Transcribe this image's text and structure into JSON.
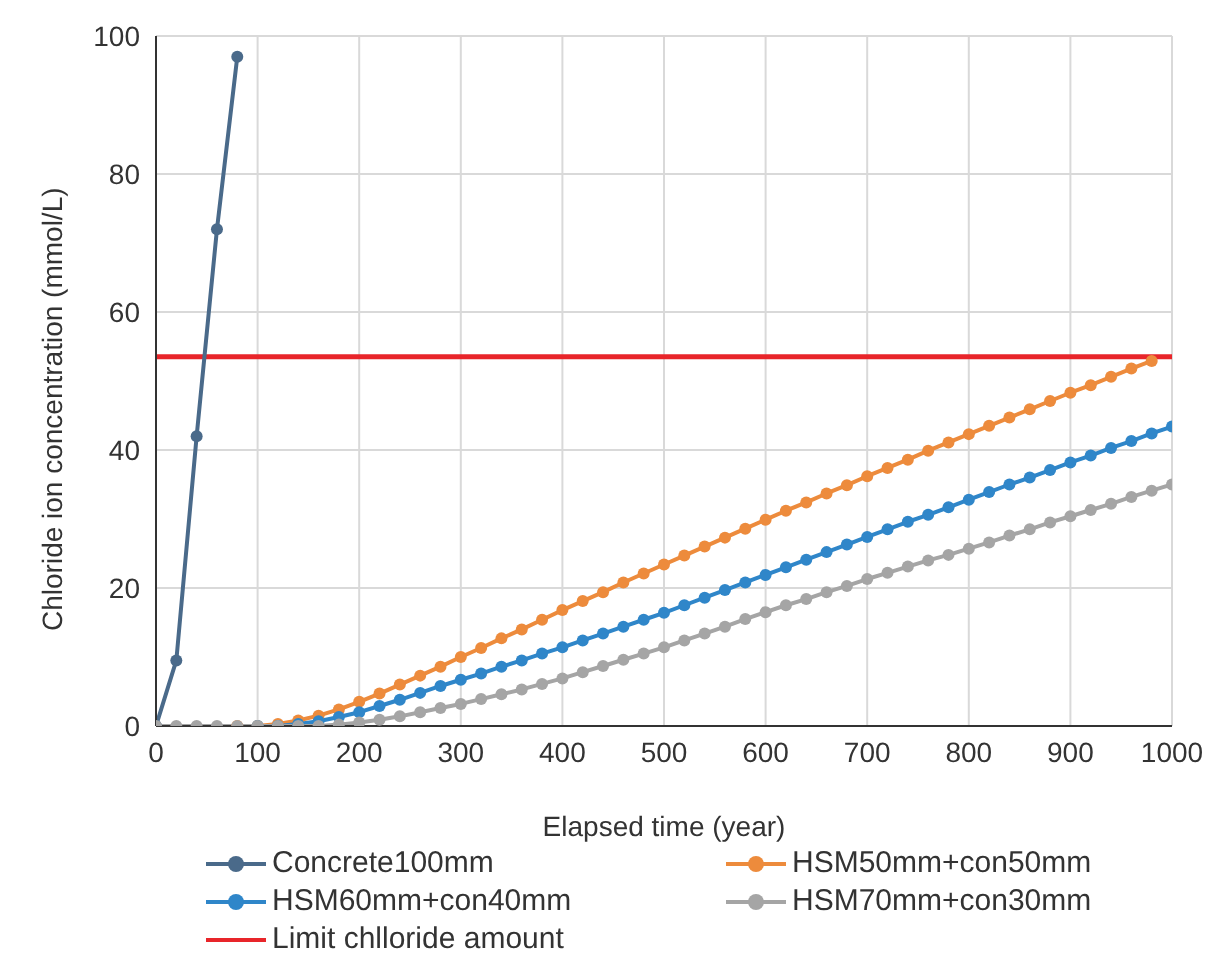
{
  "chart_data": {
    "type": "line",
    "xlabel": "Elapsed time (year)",
    "ylabel": "Chloride ion concentration (mmol/L)",
    "xlim": [
      0,
      1000
    ],
    "xticks": [
      0,
      100,
      200,
      300,
      400,
      500,
      600,
      700,
      800,
      900,
      1000
    ],
    "ylim": [
      0,
      100
    ],
    "yticks": [
      0,
      20,
      40,
      60,
      80,
      100
    ],
    "grid": true,
    "legend": "bottom",
    "marker": "circle",
    "series": [
      {
        "name": "Concrete100mm",
        "color": "#4a6a8a",
        "x": [
          0,
          20,
          40,
          60,
          80
        ],
        "values": [
          0,
          9.5,
          42,
          72,
          97
        ]
      },
      {
        "name": "HSM50mm+con50mm",
        "color": "#ed8b3c",
        "x": [
          80,
          100,
          120,
          140,
          160,
          180,
          200,
          220,
          240,
          260,
          280,
          300,
          320,
          340,
          360,
          380,
          400,
          420,
          440,
          460,
          480,
          500,
          520,
          540,
          560,
          580,
          600,
          620,
          640,
          660,
          680,
          700,
          720,
          740,
          760,
          780,
          800,
          820,
          840,
          860,
          880,
          900,
          920,
          940,
          960,
          980
        ],
        "values": [
          0,
          0,
          0.3,
          0.8,
          1.5,
          2.4,
          3.5,
          4.7,
          6.0,
          7.3,
          8.6,
          10.0,
          11.3,
          12.7,
          14.0,
          15.4,
          16.8,
          18.1,
          19.4,
          20.8,
          22.1,
          23.4,
          24.7,
          26.0,
          27.3,
          28.6,
          29.9,
          31.2,
          32.4,
          33.7,
          34.9,
          36.2,
          37.4,
          38.6,
          39.9,
          41.1,
          42.3,
          43.5,
          44.7,
          45.9,
          47.1,
          48.3,
          49.4,
          50.6,
          51.8,
          52.9
        ]
      },
      {
        "name": "HSM60mm+con40mm",
        "color": "#2f86c9",
        "x": [
          100,
          120,
          140,
          160,
          180,
          200,
          220,
          240,
          260,
          280,
          300,
          320,
          340,
          360,
          380,
          400,
          420,
          440,
          460,
          480,
          500,
          520,
          540,
          560,
          580,
          600,
          620,
          640,
          660,
          680,
          700,
          720,
          740,
          760,
          780,
          800,
          820,
          840,
          860,
          880,
          900,
          920,
          940,
          960,
          980,
          1000
        ],
        "values": [
          0,
          0,
          0.3,
          0.7,
          1.3,
          2.0,
          2.9,
          3.8,
          4.8,
          5.8,
          6.7,
          7.6,
          8.6,
          9.5,
          10.5,
          11.4,
          12.4,
          13.4,
          14.4,
          15.4,
          16.4,
          17.5,
          18.6,
          19.7,
          20.8,
          21.9,
          23.0,
          24.1,
          25.2,
          26.3,
          27.4,
          28.5,
          29.6,
          30.6,
          31.7,
          32.8,
          33.9,
          35.0,
          36.0,
          37.1,
          38.2,
          39.2,
          40.3,
          41.3,
          42.4,
          43.4
        ]
      },
      {
        "name": "HSM70mm+con30mm",
        "color": "#a5a5a5",
        "x": [
          0,
          20,
          40,
          60,
          80,
          100,
          120,
          140,
          160,
          180,
          200,
          220,
          240,
          260,
          280,
          300,
          320,
          340,
          360,
          380,
          400,
          420,
          440,
          460,
          480,
          500,
          520,
          540,
          560,
          580,
          600,
          620,
          640,
          660,
          680,
          700,
          720,
          740,
          760,
          780,
          800,
          820,
          840,
          860,
          880,
          900,
          920,
          940,
          960,
          980,
          1000
        ],
        "values": [
          0,
          0,
          0,
          0,
          0,
          0,
          0,
          0,
          0,
          0.2,
          0.5,
          0.9,
          1.4,
          2.0,
          2.6,
          3.2,
          3.9,
          4.6,
          5.3,
          6.1,
          6.9,
          7.8,
          8.7,
          9.6,
          10.5,
          11.4,
          12.4,
          13.4,
          14.4,
          15.5,
          16.5,
          17.5,
          18.4,
          19.4,
          20.3,
          21.3,
          22.2,
          23.1,
          24.0,
          24.8,
          25.7,
          26.6,
          27.6,
          28.5,
          29.5,
          30.4,
          31.3,
          32.2,
          33.2,
          34.1,
          35.0
        ]
      }
    ],
    "ref_lines": [
      {
        "axis": "y",
        "value": 53.5,
        "label": "Limit chlloride amount",
        "color": "#e8252a"
      }
    ]
  }
}
